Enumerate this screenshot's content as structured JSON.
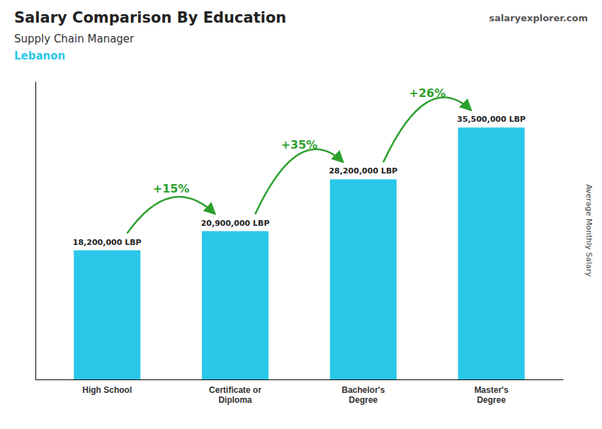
{
  "chart_data": {
    "type": "bar",
    "title": "Salary Comparison By Education",
    "subtitle": "Supply Chain Manager",
    "ylabel": "Average Monthly Salary",
    "categories": [
      "High School",
      "Certificate or\nDiploma",
      "Bachelor's\nDegree",
      "Master's\nDegree"
    ],
    "values": [
      18200000,
      20900000,
      28200000,
      35500000
    ],
    "value_labels": [
      "18,200,000 LBP",
      "20,900,000 LBP",
      "28,200,000 LBP",
      "35,500,000 LBP"
    ],
    "data_labels": true,
    "annotations": [
      "+15%",
      "+35%",
      "+26%",
      "Lebanon",
      "salaryexplorer.com"
    ],
    "color": "#29c8e8",
    "ylim": [
      0,
      42000000
    ],
    "tick_labels": "x"
  }
}
